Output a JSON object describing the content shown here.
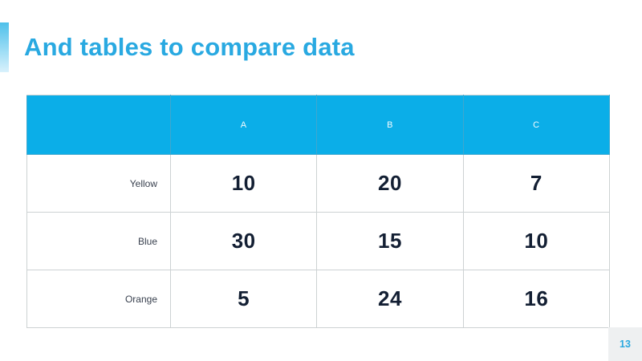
{
  "slide": {
    "title": "And tables to compare data",
    "page_number": "13"
  },
  "colors": {
    "title_blue": "#29a9e1",
    "header_blue": "#0baee8",
    "value_navy": "#131f33",
    "row_label_gray": "#39414f",
    "table_border_gray": "#cdd2d3",
    "page_box_bg": "#eef0f1",
    "page_number_blue": "#2aa9df",
    "accent_bar_gradient_top": "#4fc0ea",
    "accent_bar_gradient_bottom": "#d9f1fc"
  },
  "chart_data": {
    "type": "table",
    "title": "And tables to compare data",
    "columns": [
      "",
      "A",
      "B",
      "C"
    ],
    "rows": [
      {
        "label": "Yellow",
        "values": [
          10,
          20,
          7
        ]
      },
      {
        "label": "Blue",
        "values": [
          30,
          15,
          10
        ]
      },
      {
        "label": "Orange",
        "values": [
          5,
          24,
          16
        ]
      }
    ],
    "layout_hints": {
      "header_background": "#0baee8",
      "header_text_color": "#ffffff",
      "row_label_alignment": "right",
      "value_alignment": "center",
      "grid": true
    }
  }
}
